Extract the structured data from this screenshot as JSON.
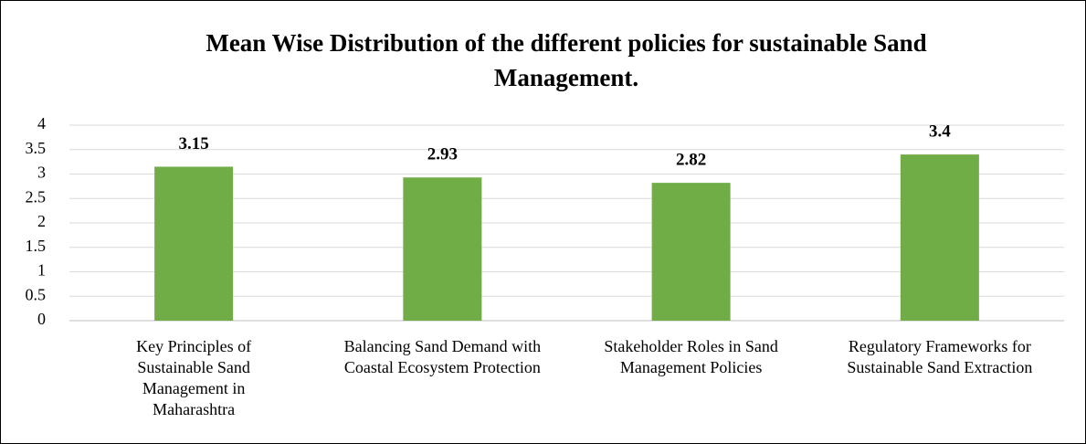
{
  "chart_data": {
    "type": "bar",
    "title": "Mean Wise Distribution of the different policies for sustainable Sand Management.",
    "categories": [
      "Key Principles of Sustainable Sand Management in Maharashtra",
      "Balancing Sand Demand with Coastal Ecosystem Protection",
      "Stakeholder Roles in Sand Management Policies",
      "Regulatory Frameworks for Sustainable Sand Extraction"
    ],
    "values": [
      3.15,
      2.93,
      2.82,
      3.4
    ],
    "color": "#70ad47",
    "ylim": [
      0,
      4
    ],
    "yticks": [
      0,
      0.5,
      1,
      1.5,
      2,
      2.5,
      3,
      3.5,
      4
    ],
    "grid": true
  }
}
